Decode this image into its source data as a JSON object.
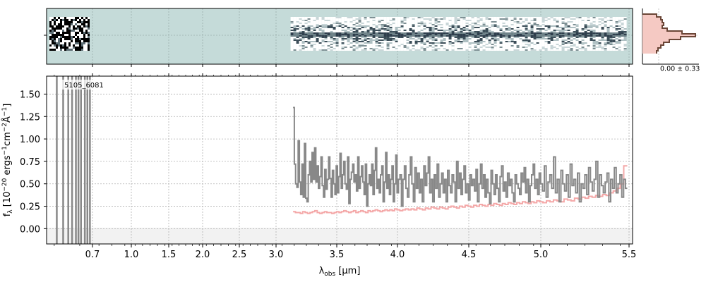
{
  "chart_data": {
    "type": "line",
    "object_label": "5105_6081",
    "xlabel_main": "λ",
    "xlabel_sub": "obs",
    "xlabel_unit": " [μm]",
    "ylabel_main": "f",
    "ylabel_sub": "λ",
    "ylabel_unit": " [10",
    "ylabel_exp1": "−20",
    "ylabel_rest": " ergs",
    "ylabel_exp2": "−1",
    "ylabel_cm": "cm",
    "ylabel_exp3": "−2",
    "ylabel_A": "Å",
    "ylabel_exp4": "−1",
    "ylabel_close": "]",
    "xlim": [
      0.52,
      5.52
    ],
    "ylim": [
      -0.17,
      1.7
    ],
    "x_scale": "sqrt-like (tick labels shown as data units)",
    "x_ticks": [
      "0.7",
      "1.0",
      "1.5",
      "2.0",
      "2.5",
      "3.0",
      "3.5",
      "4.0",
      "4.5",
      "5.0",
      "5.5"
    ],
    "y_ticks": [
      "0.00",
      "0.25",
      "0.50",
      "0.75",
      "1.00",
      "1.25",
      "1.50"
    ],
    "grid": true,
    "side_panel_label": "0.00 ± 0.33",
    "series": [
      {
        "color": "#888888",
        "x_start": 3.14,
        "x_end": 5.49,
        "values": [
          1.35,
          0.72,
          0.5,
          0.46,
          0.98,
          0.52,
          0.38,
          0.72,
          0.35,
          0.95,
          0.34,
          0.3,
          0.6,
          0.75,
          0.52,
          0.85,
          0.55,
          0.9,
          0.52,
          0.7,
          0.45,
          0.58,
          0.8,
          0.48,
          0.35,
          0.66,
          0.44,
          0.55,
          0.8,
          0.56,
          0.35,
          0.65,
          0.5,
          0.38,
          0.7,
          0.4,
          0.58,
          0.84,
          0.45,
          0.6,
          0.75,
          0.5,
          0.44,
          0.8,
          0.28,
          0.55,
          0.63,
          0.72,
          0.52,
          0.6,
          0.42,
          0.8,
          0.45,
          0.58,
          0.7,
          0.52,
          0.38,
          0.72,
          0.25,
          0.5,
          0.6,
          0.48,
          0.72,
          0.38,
          0.65,
          0.9,
          0.45,
          0.55,
          0.4,
          0.6,
          0.7,
          0.3,
          0.52,
          0.85,
          0.45,
          0.6,
          0.38,
          0.55,
          0.7,
          0.3,
          0.5,
          0.82,
          0.4,
          0.55,
          0.6,
          0.25,
          0.55,
          0.7,
          0.45,
          0.35,
          0.6,
          0.8,
          0.5,
          0.3,
          0.68,
          0.45,
          0.62,
          0.4,
          0.55,
          0.3,
          0.7,
          0.48,
          0.62,
          0.8,
          0.4,
          0.55,
          0.3,
          0.6,
          0.45,
          0.72,
          0.35,
          0.5,
          0.62,
          0.4,
          0.55,
          0.3,
          0.65,
          0.48,
          0.4,
          0.6,
          0.52,
          0.3,
          0.75,
          0.45,
          0.62,
          0.38,
          0.55,
          0.7,
          0.4,
          0.5,
          0.32,
          0.6,
          0.48,
          0.55,
          0.42,
          0.66,
          0.3,
          0.5,
          0.72,
          0.45,
          0.6,
          0.35,
          0.55,
          0.4,
          0.28,
          0.65,
          0.5,
          0.38,
          0.6,
          0.45,
          0.3,
          0.58,
          0.7,
          0.42,
          0.52,
          0.35,
          0.62,
          0.48,
          0.55,
          0.4,
          0.3,
          0.6,
          0.5,
          0.45,
          0.38,
          0.62,
          0.52,
          0.68,
          0.4,
          0.55,
          0.3,
          0.48,
          0.6,
          0.72,
          0.45,
          0.55,
          0.38,
          0.62,
          0.5,
          0.42,
          0.7,
          0.35,
          0.52,
          0.6,
          0.45,
          0.8,
          0.4,
          0.55,
          0.3,
          0.65,
          0.5,
          0.42,
          0.6,
          0.35,
          0.72,
          0.48,
          0.55,
          0.4,
          0.62,
          0.3,
          0.5,
          0.45,
          0.6,
          0.38,
          0.68,
          0.52,
          0.42,
          0.55,
          0.75,
          0.35,
          0.6,
          0.48,
          0.4,
          0.52,
          0.62,
          0.3,
          0.55,
          0.45,
          0.68,
          0.4,
          0.5,
          0.6,
          0.35,
          0.55,
          0.45
        ]
      },
      {
        "color": "#f4a8a8",
        "x_start": 3.14,
        "x_end": 5.49,
        "values": [
          0.19,
          0.18,
          0.18,
          0.17,
          0.19,
          0.18,
          0.17,
          0.18,
          0.19,
          0.2,
          0.18,
          0.17,
          0.18,
          0.19,
          0.18,
          0.18,
          0.17,
          0.18,
          0.19,
          0.18,
          0.19,
          0.2,
          0.19,
          0.18,
          0.19,
          0.2,
          0.18,
          0.19,
          0.2,
          0.19,
          0.18,
          0.2,
          0.19,
          0.2,
          0.21,
          0.2,
          0.19,
          0.2,
          0.21,
          0.2,
          0.21,
          0.2,
          0.22,
          0.21,
          0.2,
          0.21,
          0.22,
          0.21,
          0.22,
          0.21,
          0.23,
          0.22,
          0.21,
          0.23,
          0.22,
          0.24,
          0.23,
          0.22,
          0.24,
          0.23,
          0.22,
          0.24,
          0.25,
          0.24,
          0.23,
          0.25,
          0.24,
          0.26,
          0.25,
          0.24,
          0.26,
          0.25,
          0.27,
          0.26,
          0.25,
          0.27,
          0.26,
          0.28,
          0.27,
          0.26,
          0.28,
          0.27,
          0.29,
          0.28,
          0.27,
          0.29,
          0.28,
          0.3,
          0.29,
          0.28,
          0.3,
          0.29,
          0.31,
          0.3,
          0.29,
          0.31,
          0.3,
          0.32,
          0.31,
          0.3,
          0.33,
          0.32,
          0.31,
          0.34,
          0.33,
          0.35,
          0.34,
          0.36,
          0.35,
          0.37,
          0.36,
          0.38,
          0.37,
          0.4,
          0.42,
          0.45,
          0.5,
          0.7
        ]
      }
    ],
    "low_wavelength_noise": {
      "color": "#888888",
      "x": [
        0.56,
        0.585,
        0.605,
        0.62,
        0.635,
        0.645,
        0.655,
        0.67,
        0.68,
        0.69
      ],
      "range": [
        -0.17,
        1.7
      ]
    }
  }
}
